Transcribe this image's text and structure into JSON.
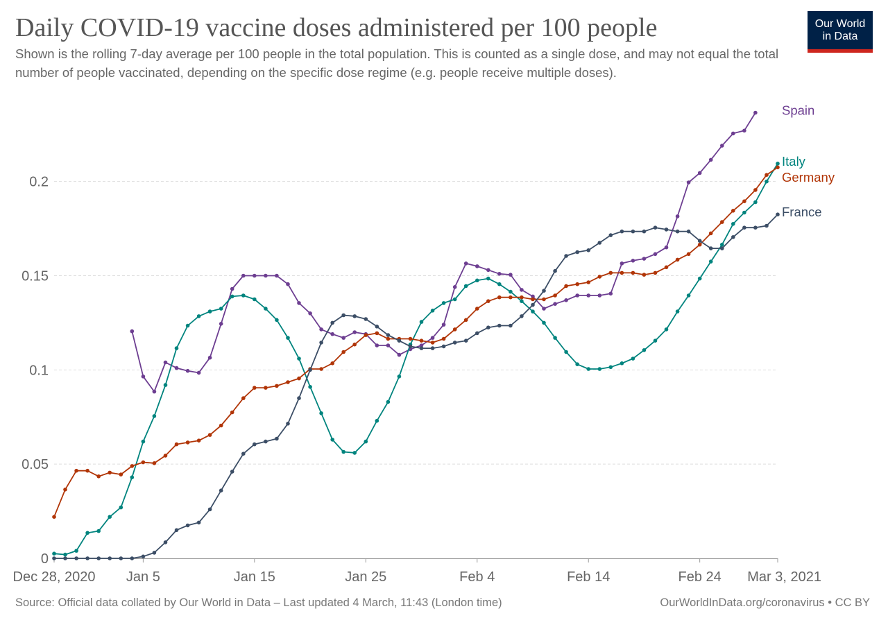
{
  "header": {
    "title": "Daily COVID-19 vaccine doses administered per 100 people",
    "subtitle": "Shown is the rolling 7-day average per 100 people in the total population. This is counted as a single dose, and may not equal the total number of people vaccinated, depending on the specific dose regime (e.g. people receive multiple doses)."
  },
  "logo": {
    "line1": "Our World",
    "line2": "in Data",
    "bg": "#002147",
    "accent": "#ce261e"
  },
  "footer": {
    "source": "Source: Official data collated by Our World in Data – Last updated 4 March, 11:43 (London time)",
    "credit": "OurWorldInData.org/coronavirus • CC BY"
  },
  "chart_data": {
    "type": "line",
    "title": "Daily COVID-19 vaccine doses administered per 100 people",
    "xlabel": "",
    "ylabel": "",
    "x_start": "2020-12-28",
    "x_end": "2021-03-03",
    "ylim": [
      0,
      0.24
    ],
    "y_ticks": [
      {
        "value": 0,
        "label": "0"
      },
      {
        "value": 0.05,
        "label": "0.05"
      },
      {
        "value": 0.1,
        "label": "0.1"
      },
      {
        "value": 0.15,
        "label": "0.15"
      },
      {
        "value": 0.2,
        "label": "0.2"
      }
    ],
    "x_ticks": [
      {
        "date": "2020-12-28",
        "label": "Dec 28, 2020"
      },
      {
        "date": "2021-01-05",
        "label": "Jan 5"
      },
      {
        "date": "2021-01-15",
        "label": "Jan 15"
      },
      {
        "date": "2021-01-25",
        "label": "Jan 25"
      },
      {
        "date": "2021-02-04",
        "label": "Feb 4"
      },
      {
        "date": "2021-02-14",
        "label": "Feb 14"
      },
      {
        "date": "2021-02-24",
        "label": "Feb 24"
      },
      {
        "date": "2021-03-03",
        "label": "Mar 3, 2021"
      }
    ],
    "grid": "horizontal-dashed",
    "legend": "right-end-labels",
    "series": [
      {
        "name": "Spain",
        "color": "#6d3e91",
        "start": "2021-01-04",
        "values": [
          0.1205,
          0.0965,
          0.0885,
          0.104,
          0.101,
          0.0995,
          0.0985,
          0.1065,
          0.1245,
          0.143,
          0.15,
          0.15,
          0.15,
          0.15,
          0.1455,
          0.1355,
          0.13,
          0.1215,
          0.119,
          0.117,
          0.12,
          0.119,
          0.113,
          0.113,
          0.108,
          0.111,
          0.113,
          0.117,
          0.124,
          0.144,
          0.1565,
          0.155,
          0.153,
          0.151,
          0.1505,
          0.1425,
          0.139,
          0.1325,
          0.135,
          0.137,
          0.1395,
          0.1395,
          0.1395,
          0.1405,
          0.1565,
          0.158,
          0.159,
          0.1615,
          0.165,
          0.1815,
          0.1995,
          0.2045,
          0.2115,
          0.219,
          0.2255,
          0.227,
          0.2365
        ]
      },
      {
        "name": "Italy",
        "color": "#00847e",
        "start": "2020-12-28",
        "values": [
          0.0025,
          0.002,
          0.004,
          0.0135,
          0.0145,
          0.022,
          0.027,
          0.043,
          0.062,
          0.0755,
          0.092,
          0.1115,
          0.1235,
          0.1285,
          0.131,
          0.1325,
          0.139,
          0.1395,
          0.1375,
          0.1325,
          0.1265,
          0.117,
          0.106,
          0.091,
          0.077,
          0.063,
          0.0565,
          0.056,
          0.062,
          0.073,
          0.083,
          0.0965,
          0.1135,
          0.1255,
          0.1315,
          0.1355,
          0.1375,
          0.1445,
          0.1475,
          0.1485,
          0.1455,
          0.1415,
          0.1365,
          0.131,
          0.125,
          0.117,
          0.1095,
          0.103,
          0.1005,
          0.1005,
          0.1015,
          0.1035,
          0.106,
          0.1105,
          0.1155,
          0.1215,
          0.131,
          0.1395,
          0.1485,
          0.1575,
          0.1665,
          0.1775,
          0.1835,
          0.189,
          0.2,
          0.2095
        ]
      },
      {
        "name": "Germany",
        "color": "#b13507",
        "start": "2020-12-28",
        "values": [
          0.022,
          0.0365,
          0.0465,
          0.0465,
          0.0435,
          0.0455,
          0.0445,
          0.049,
          0.051,
          0.0505,
          0.0545,
          0.0605,
          0.0615,
          0.0625,
          0.0655,
          0.0705,
          0.0775,
          0.085,
          0.0905,
          0.0905,
          0.0915,
          0.0935,
          0.0955,
          0.1005,
          0.1005,
          0.1035,
          0.1095,
          0.1135,
          0.1185,
          0.1195,
          0.1165,
          0.1165,
          0.1165,
          0.1155,
          0.1145,
          0.1165,
          0.1215,
          0.1265,
          0.1325,
          0.1365,
          0.1385,
          0.1385,
          0.1385,
          0.1375,
          0.1375,
          0.1395,
          0.1445,
          0.1455,
          0.1465,
          0.1495,
          0.1515,
          0.1515,
          0.1515,
          0.1505,
          0.1515,
          0.1545,
          0.1585,
          0.1615,
          0.1665,
          0.1725,
          0.1785,
          0.1845,
          0.1895,
          0.1955,
          0.2035,
          0.2075
        ]
      },
      {
        "name": "France",
        "color": "#3c4e66",
        "start": "2020-12-28",
        "values": [
          0,
          0,
          0,
          0,
          0,
          0,
          0,
          0,
          0.001,
          0.003,
          0.0085,
          0.015,
          0.0175,
          0.019,
          0.026,
          0.036,
          0.046,
          0.0555,
          0.0605,
          0.062,
          0.0635,
          0.0715,
          0.085,
          0.1,
          0.1145,
          0.125,
          0.129,
          0.1285,
          0.127,
          0.123,
          0.1185,
          0.1155,
          0.1125,
          0.1115,
          0.1115,
          0.1125,
          0.1145,
          0.1155,
          0.1195,
          0.1225,
          0.1235,
          0.1235,
          0.1285,
          0.1345,
          0.142,
          0.1525,
          0.1605,
          0.1625,
          0.1635,
          0.1675,
          0.1715,
          0.1735,
          0.1735,
          0.1735,
          0.1755,
          0.1745,
          0.1735,
          0.1735,
          0.1685,
          0.1645,
          0.1645,
          0.1705,
          0.1755,
          0.1755,
          0.1765,
          0.1825
        ]
      }
    ]
  }
}
